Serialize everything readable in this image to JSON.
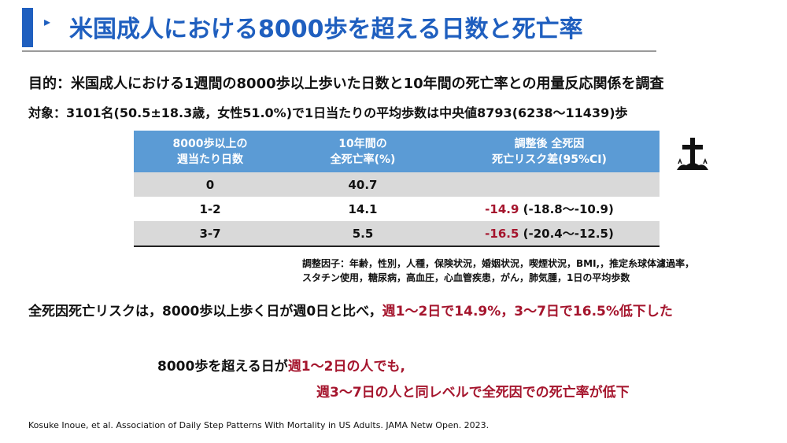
{
  "header": {
    "arrow": "▸",
    "title": "米国成人における8000歩を超える日数と死亡率"
  },
  "purpose": "目的：米国成人における1週間の8000歩以上歩いた日数と10年間の死亡率との用量反応関係を調査",
  "subject": "対象：3101名(50.5±18.3歳，女性51.0%)で1日当たりの平均歩数は中央値8793(6238〜11439)歩",
  "table": {
    "headers": {
      "col1_line1": "8000歩以上の",
      "col1_line2": "週当たり日数",
      "col2_line1": "10年間の",
      "col2_line2": "全死亡率(%)",
      "col3_line1": "調整後 全死因",
      "col3_line2": "死亡リスク差(95%CI)"
    },
    "rows": [
      {
        "days": "0",
        "rate": "40.7",
        "diff": "",
        "ci": ""
      },
      {
        "days": "1-2",
        "rate": "14.1",
        "diff": "-14.9",
        "ci": " (-18.8〜-10.9)"
      },
      {
        "days": "3-7",
        "rate": "5.5",
        "diff": "-16.5",
        "ci": " (-20.4〜-12.5)"
      }
    ]
  },
  "icon": "grave-cross-icon",
  "adjustment": {
    "line1": "調整因子：年齢，性別，人種，保険状況，婚姻状況，喫煙状況，BMI,，推定糸球体濾過率，",
    "line2": "スタチン使用，糖尿病，高血圧，心血管疾患，がん，肺気腫，1日の平均歩数"
  },
  "conclusion": {
    "part1": "全死因死亡リスクは，8000歩以上歩く日が週0日と比べ，",
    "part2": "週1〜2日で14.9%，3〜7日で16.5%低下した"
  },
  "message": {
    "line1_part1": "8000歩を超える日が",
    "line1_part2": "週1〜2日の人でも,",
    "line2": "週3〜7日の人と同レベルで全死因での死亡率が低下"
  },
  "citation": "Kosuke Inoue, et al. Association of Daily Step Patterns With Mortality in US Adults. JAMA Netw Open. 2023.",
  "colors": {
    "accent_blue": "#1f5fbf",
    "table_header": "#5b9bd5",
    "row_shade": "#d9d9d9",
    "highlight_red": "#a5152d"
  }
}
